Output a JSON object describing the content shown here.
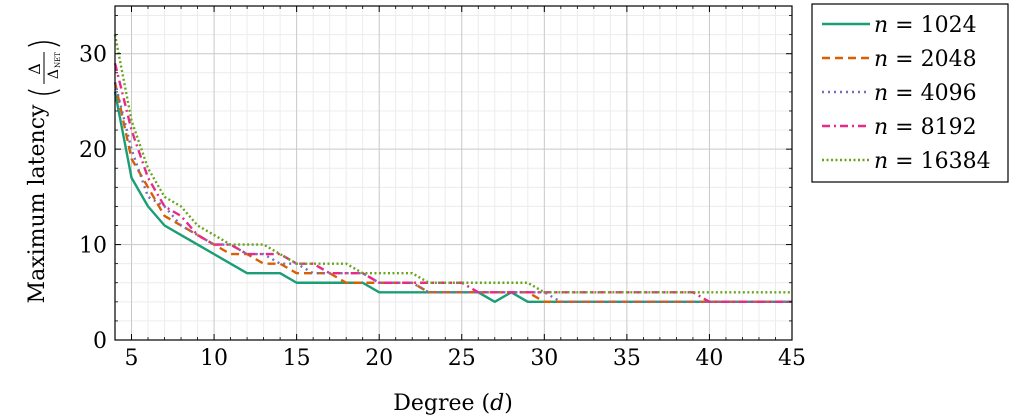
{
  "chart_data": {
    "type": "line",
    "xlabel": "Degree",
    "xlabel_var": "d",
    "ylabel": "Maximum latency",
    "ylabel_frac_num": "Δ",
    "ylabel_frac_den": "Δ",
    "ylabel_frac_den_sub": "NET",
    "xlim": [
      4,
      45
    ],
    "ylim": [
      0,
      35
    ],
    "xticks": [
      5,
      10,
      15,
      20,
      25,
      30,
      35,
      40,
      45
    ],
    "yticks": [
      0,
      10,
      20,
      30
    ],
    "grid": true,
    "legend_position": "outside-right",
    "series": [
      {
        "name": "n = 1024",
        "name_var": "n",
        "name_value": "= 1024",
        "color": "#1b9e77",
        "dash": "solid",
        "points": [
          [
            4,
            26
          ],
          [
            5,
            17
          ],
          [
            6,
            14
          ],
          [
            7,
            12
          ],
          [
            8,
            11
          ],
          [
            9,
            10
          ],
          [
            10,
            9
          ],
          [
            11,
            8
          ],
          [
            12,
            7
          ],
          [
            13,
            7
          ],
          [
            14,
            7
          ],
          [
            15,
            6
          ],
          [
            16,
            6
          ],
          [
            17,
            6
          ],
          [
            18,
            6
          ],
          [
            19,
            6
          ],
          [
            20,
            5
          ],
          [
            21,
            5
          ],
          [
            22,
            5
          ],
          [
            23,
            5
          ],
          [
            24,
            5
          ],
          [
            25,
            5
          ],
          [
            26,
            5
          ],
          [
            27,
            4
          ],
          [
            28,
            5
          ],
          [
            29,
            4
          ],
          [
            30,
            4
          ],
          [
            31,
            4
          ],
          [
            32,
            4
          ],
          [
            33,
            4
          ],
          [
            34,
            4
          ],
          [
            35,
            4
          ],
          [
            36,
            4
          ],
          [
            37,
            4
          ],
          [
            38,
            4
          ],
          [
            39,
            4
          ],
          [
            40,
            4
          ],
          [
            41,
            4
          ],
          [
            42,
            4
          ],
          [
            43,
            4
          ],
          [
            44,
            4
          ],
          [
            45,
            4
          ]
        ]
      },
      {
        "name": "n = 2048",
        "name_var": "n",
        "name_value": "= 2048",
        "color": "#d95f02",
        "dash": "dashed",
        "points": [
          [
            4,
            27
          ],
          [
            5,
            19
          ],
          [
            6,
            16
          ],
          [
            7,
            13
          ],
          [
            8,
            12
          ],
          [
            9,
            11
          ],
          [
            10,
            10
          ],
          [
            11,
            9
          ],
          [
            12,
            9
          ],
          [
            13,
            8
          ],
          [
            14,
            8
          ],
          [
            15,
            7
          ],
          [
            16,
            7
          ],
          [
            17,
            7
          ],
          [
            18,
            6
          ],
          [
            19,
            6
          ],
          [
            20,
            6
          ],
          [
            21,
            6
          ],
          [
            22,
            6
          ],
          [
            23,
            5
          ],
          [
            24,
            5
          ],
          [
            25,
            5
          ],
          [
            26,
            5
          ],
          [
            27,
            5
          ],
          [
            28,
            5
          ],
          [
            29,
            5
          ],
          [
            30,
            4
          ],
          [
            31,
            4
          ],
          [
            32,
            4
          ],
          [
            33,
            4
          ],
          [
            34,
            4
          ],
          [
            35,
            4
          ],
          [
            36,
            4
          ],
          [
            37,
            4
          ],
          [
            38,
            4
          ],
          [
            39,
            4
          ],
          [
            40,
            4
          ],
          [
            41,
            4
          ],
          [
            42,
            4
          ],
          [
            43,
            4
          ],
          [
            44,
            4
          ],
          [
            45,
            4
          ]
        ]
      },
      {
        "name": "n = 4096",
        "name_var": "n",
        "name_value": "= 4096",
        "color": "#7570b3",
        "dash": "dotted",
        "points": [
          [
            4,
            27
          ],
          [
            5,
            20
          ],
          [
            6,
            15
          ],
          [
            7,
            14
          ],
          [
            8,
            12
          ],
          [
            9,
            11
          ],
          [
            10,
            10
          ],
          [
            11,
            10
          ],
          [
            12,
            9
          ],
          [
            13,
            9
          ],
          [
            14,
            8
          ],
          [
            15,
            8
          ],
          [
            16,
            7
          ],
          [
            17,
            7
          ],
          [
            18,
            7
          ],
          [
            19,
            7
          ],
          [
            20,
            6
          ],
          [
            21,
            6
          ],
          [
            22,
            6
          ],
          [
            23,
            5
          ],
          [
            24,
            5
          ],
          [
            25,
            5
          ],
          [
            26,
            5
          ],
          [
            27,
            5
          ],
          [
            28,
            5
          ],
          [
            29,
            5
          ],
          [
            30,
            5
          ],
          [
            31,
            4
          ],
          [
            32,
            4
          ],
          [
            33,
            4
          ],
          [
            34,
            4
          ],
          [
            35,
            4
          ],
          [
            36,
            4
          ],
          [
            37,
            4
          ],
          [
            38,
            4
          ],
          [
            39,
            4
          ],
          [
            40,
            4
          ],
          [
            41,
            4
          ],
          [
            42,
            4
          ],
          [
            43,
            4
          ],
          [
            44,
            4
          ],
          [
            45,
            4
          ]
        ]
      },
      {
        "name": "n = 8192",
        "name_var": "n",
        "name_value": "= 8192",
        "color": "#e7298a",
        "dash": "dashdot",
        "points": [
          [
            4,
            29
          ],
          [
            5,
            22
          ],
          [
            6,
            17
          ],
          [
            7,
            14
          ],
          [
            8,
            13
          ],
          [
            9,
            11
          ],
          [
            10,
            10
          ],
          [
            11,
            10
          ],
          [
            12,
            9
          ],
          [
            13,
            9
          ],
          [
            14,
            9
          ],
          [
            15,
            8
          ],
          [
            16,
            8
          ],
          [
            17,
            7
          ],
          [
            18,
            7
          ],
          [
            19,
            7
          ],
          [
            20,
            6
          ],
          [
            21,
            6
          ],
          [
            22,
            6
          ],
          [
            23,
            6
          ],
          [
            24,
            6
          ],
          [
            25,
            6
          ],
          [
            26,
            5
          ],
          [
            27,
            5
          ],
          [
            28,
            5
          ],
          [
            29,
            5
          ],
          [
            30,
            5
          ],
          [
            31,
            5
          ],
          [
            32,
            5
          ],
          [
            33,
            5
          ],
          [
            34,
            5
          ],
          [
            35,
            5
          ],
          [
            36,
            5
          ],
          [
            37,
            5
          ],
          [
            38,
            5
          ],
          [
            39,
            5
          ],
          [
            40,
            4
          ],
          [
            41,
            4
          ],
          [
            42,
            4
          ],
          [
            43,
            4
          ],
          [
            44,
            4
          ],
          [
            45,
            4
          ]
        ]
      },
      {
        "name": "n = 16384",
        "name_var": "n",
        "name_value": "= 16384",
        "color": "#66a61e",
        "dash": "densely-dotted",
        "points": [
          [
            4,
            32
          ],
          [
            5,
            23
          ],
          [
            6,
            18
          ],
          [
            7,
            15
          ],
          [
            8,
            14
          ],
          [
            9,
            12
          ],
          [
            10,
            11
          ],
          [
            11,
            10
          ],
          [
            12,
            10
          ],
          [
            13,
            10
          ],
          [
            14,
            9
          ],
          [
            15,
            8
          ],
          [
            16,
            8
          ],
          [
            17,
            8
          ],
          [
            18,
            8
          ],
          [
            19,
            7
          ],
          [
            20,
            7
          ],
          [
            21,
            7
          ],
          [
            22,
            7
          ],
          [
            23,
            6
          ],
          [
            24,
            6
          ],
          [
            25,
            6
          ],
          [
            26,
            6
          ],
          [
            27,
            6
          ],
          [
            28,
            6
          ],
          [
            29,
            6
          ],
          [
            30,
            5
          ],
          [
            31,
            5
          ],
          [
            32,
            5
          ],
          [
            33,
            5
          ],
          [
            34,
            5
          ],
          [
            35,
            5
          ],
          [
            36,
            5
          ],
          [
            37,
            5
          ],
          [
            38,
            5
          ],
          [
            39,
            5
          ],
          [
            40,
            5
          ],
          [
            41,
            5
          ],
          [
            42,
            5
          ],
          [
            43,
            5
          ],
          [
            44,
            5
          ],
          [
            45,
            5
          ]
        ]
      }
    ]
  }
}
